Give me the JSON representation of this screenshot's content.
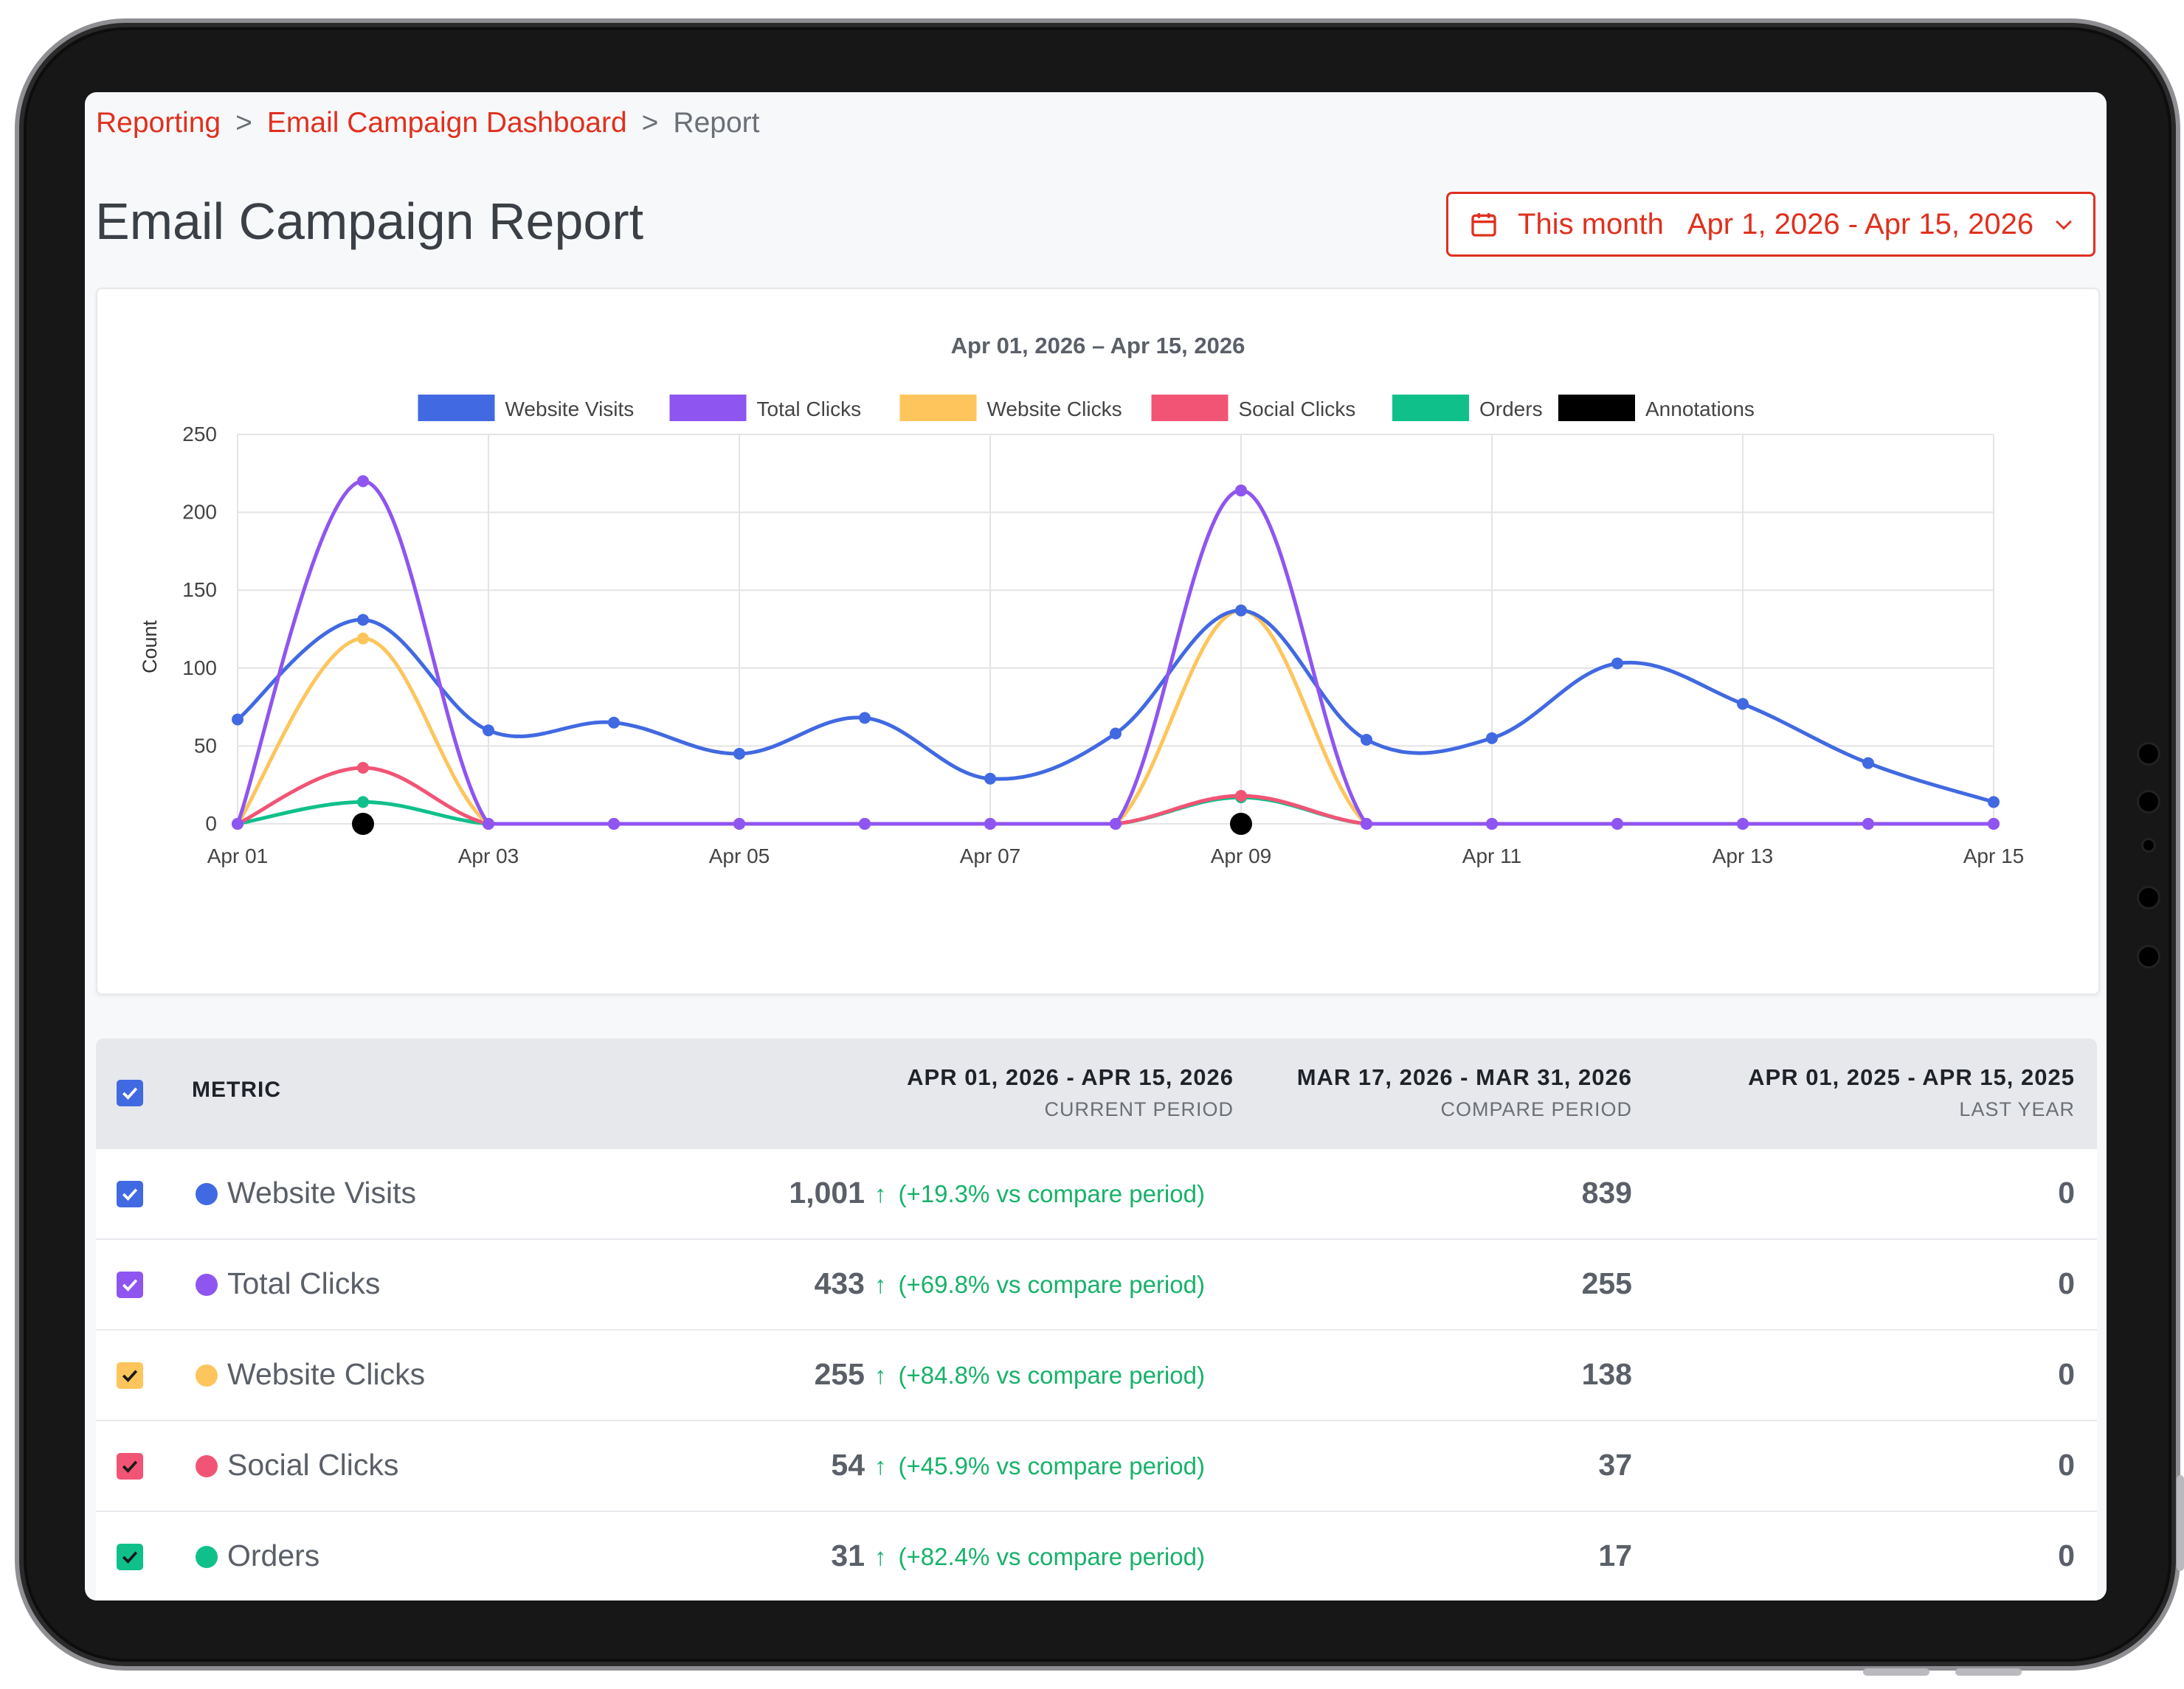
{
  "breadcrumb": {
    "items": [
      "Reporting",
      "Email Campaign Dashboard",
      "Report"
    ],
    "separator": ">"
  },
  "page_title": "Email Campaign Report",
  "date_picker": {
    "preset": "This month",
    "range": "Apr 1, 2026 - Apr 15, 2026",
    "icon": "calendar-icon",
    "dropdown_icon": "chevron-down-icon"
  },
  "colors": {
    "accent": "#e0301e",
    "positive": "#17b26a"
  },
  "chart_data": {
    "type": "line",
    "title": "Apr 01, 2026 – Apr 15, 2026",
    "xlabel": "",
    "ylabel": "Count",
    "ylim": [
      0,
      250
    ],
    "yticks": [
      0,
      50,
      100,
      150,
      200,
      250
    ],
    "x": [
      "Apr 01",
      "Apr 02",
      "Apr 03",
      "Apr 04",
      "Apr 05",
      "Apr 06",
      "Apr 07",
      "Apr 08",
      "Apr 09",
      "Apr 10",
      "Apr 11",
      "Apr 12",
      "Apr 13",
      "Apr 14",
      "Apr 15"
    ],
    "xticks": [
      "Apr 01",
      "Apr 03",
      "Apr 05",
      "Apr 07",
      "Apr 09",
      "Apr 11",
      "Apr 13",
      "Apr 15"
    ],
    "grid": true,
    "legend_position": "top",
    "series": [
      {
        "name": "Website Visits",
        "color": "#4169e1",
        "values": [
          67,
          131,
          60,
          65,
          45,
          68,
          29,
          58,
          137,
          54,
          55,
          103,
          77,
          39,
          14
        ]
      },
      {
        "name": "Total Clicks",
        "color": "#8f55f0",
        "values": [
          0,
          220,
          0,
          0,
          0,
          0,
          0,
          0,
          214,
          0,
          0,
          0,
          0,
          0,
          0
        ]
      },
      {
        "name": "Website Clicks",
        "color": "#fdc55c",
        "values": [
          0,
          119,
          0,
          0,
          0,
          0,
          0,
          0,
          137,
          0,
          0,
          0,
          0,
          0,
          0
        ]
      },
      {
        "name": "Social Clicks",
        "color": "#f25475",
        "values": [
          0,
          36,
          0,
          0,
          0,
          0,
          0,
          0,
          18,
          0,
          0,
          0,
          0,
          0,
          0
        ]
      },
      {
        "name": "Orders",
        "color": "#10c08b",
        "values": [
          0,
          14,
          0,
          0,
          0,
          0,
          0,
          0,
          17,
          0,
          0,
          0,
          0,
          0,
          0
        ]
      }
    ],
    "annotations": {
      "name": "Annotations",
      "color": "#000000",
      "x": [
        "Apr 02",
        "Apr 09"
      ],
      "y": 0
    }
  },
  "table": {
    "metric_header": "METRIC",
    "columns": [
      {
        "range": "APR 01, 2026 - APR 15, 2026",
        "label": "CURRENT PERIOD"
      },
      {
        "range": "MAR 17, 2026 - MAR 31, 2026",
        "label": "COMPARE PERIOD"
      },
      {
        "range": "APR 01, 2025 - APR 15, 2025",
        "label": "LAST YEAR"
      }
    ],
    "rows": [
      {
        "name": "Website Visits",
        "color": "#4169e1",
        "current": "1,001",
        "change": "(+19.3% vs compare period)",
        "compare": "839",
        "last_year": "0"
      },
      {
        "name": "Total Clicks",
        "color": "#8f55f0",
        "current": "433",
        "change": "(+69.8% vs compare period)",
        "compare": "255",
        "last_year": "0"
      },
      {
        "name": "Website Clicks",
        "color": "#fdc55c",
        "current": "255",
        "change": "(+84.8% vs compare period)",
        "compare": "138",
        "last_year": "0"
      },
      {
        "name": "Social Clicks",
        "color": "#f25475",
        "current": "54",
        "change": "(+45.9% vs compare period)",
        "compare": "37",
        "last_year": "0"
      },
      {
        "name": "Orders",
        "color": "#10c08b",
        "current": "31",
        "change": "(+82.4% vs compare period)",
        "compare": "17",
        "last_year": "0"
      }
    ],
    "header_checkbox_color": "#4169e1",
    "arrow_symbol": "↑"
  }
}
